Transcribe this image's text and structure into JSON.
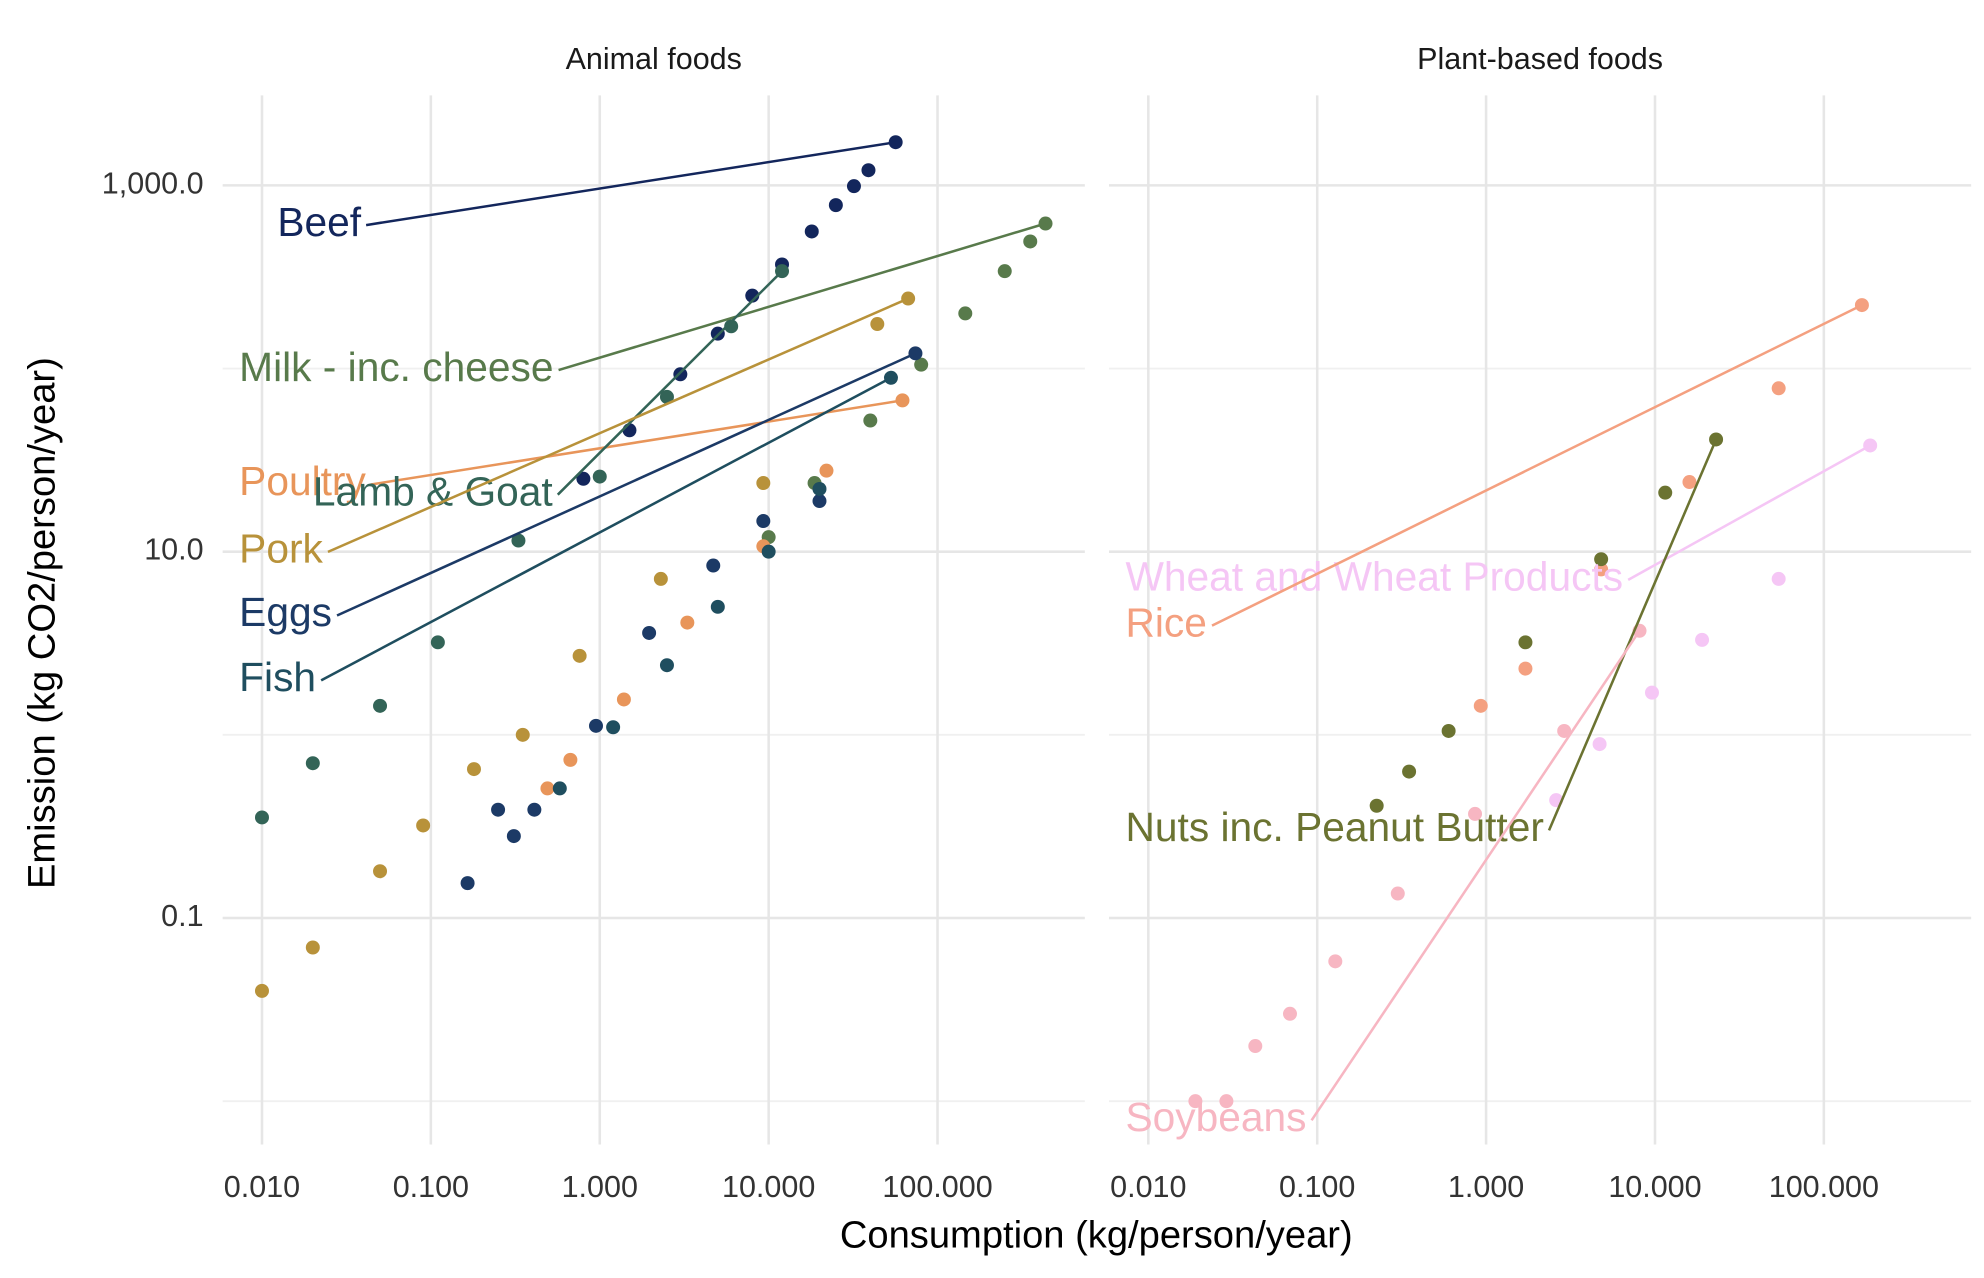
{
  "xlabel": "Consumption (kg/person/year)",
  "ylabel": "Emission (kg CO2/person/year)",
  "chart_data": [
    {
      "type": "scatter",
      "title": "Animal foods",
      "log_x": true,
      "log_y": true,
      "grid": true,
      "xlim": [
        0.00585,
        745
      ],
      "ylim": [
        0.0058,
        3100
      ],
      "xticks": [
        {
          "value": 0.01,
          "label": "0.010"
        },
        {
          "value": 0.1,
          "label": "0.100"
        },
        {
          "value": 1,
          "label": "1.000"
        },
        {
          "value": 10,
          "label": "10.000"
        },
        {
          "value": 100,
          "label": "100.000"
        }
      ],
      "yticks": [
        {
          "value": 1000,
          "label": "1,000.0"
        },
        {
          "value": 10,
          "label": "10.0"
        },
        {
          "value": 0.1,
          "label": "0.1"
        }
      ],
      "yminor": [
        100,
        1,
        0.01
      ],
      "series": [
        {
          "name": "Beef",
          "color": "#13265c",
          "x": [
            0.8,
            1.5,
            3,
            5,
            8,
            12,
            18,
            25,
            32,
            39,
            56.5
          ],
          "values": [
            25,
            46,
            93,
            155,
            250,
            370,
            560,
            780,
            990,
            1210,
            1720
          ]
        },
        {
          "name": "Milk - inc. cheese",
          "color": "#587a4b",
          "x": [
            10,
            18.7,
            40,
            80,
            146,
            250,
            354,
            436
          ],
          "values": [
            12,
            23.7,
            52,
            105,
            200,
            340,
            494,
            619
          ]
        },
        {
          "name": "Poultry",
          "color": "#e8955a",
          "x": [
            0.49,
            0.67,
            1.39,
            3.3,
            9.3,
            22,
            62
          ],
          "values": [
            0.51,
            0.73,
            1.56,
            4.1,
            10.7,
            27.7,
            67
          ]
        },
        {
          "name": "Lamb & Goat",
          "color": "#336457",
          "x": [
            0.01,
            0.02,
            0.05,
            0.11,
            0.33,
            1,
            2.5,
            6,
            12
          ],
          "values": [
            0.354,
            0.7,
            1.44,
            3.2,
            11.5,
            25.7,
            70,
            170,
            340
          ]
        },
        {
          "name": "Pork",
          "color": "#b8923a",
          "x": [
            0.01,
            0.02,
            0.05,
            0.09,
            0.18,
            0.35,
            0.76,
            2.3,
            9.3,
            44,
            67
          ],
          "values": [
            0.04,
            0.069,
            0.18,
            0.32,
            0.65,
            1,
            2.7,
            7.1,
            23.7,
            175,
            241
          ]
        },
        {
          "name": "Eggs",
          "color": "#1c3a66",
          "x": [
            0.165,
            0.25,
            0.31,
            0.41,
            0.95,
            1.96,
            4.7,
            9.3,
            20,
            74
          ],
          "values": [
            0.155,
            0.39,
            0.28,
            0.39,
            1.12,
            3.6,
            8.4,
            14.7,
            18.9,
            121
          ]
        },
        {
          "name": "Fish",
          "color": "#1f4e5f",
          "x": [
            0.58,
            1.2,
            2.5,
            5,
            10,
            20,
            53
          ],
          "values": [
            0.51,
            1.1,
            2.4,
            5,
            10,
            22,
            89
          ]
        }
      ]
    },
    {
      "type": "scatter",
      "title": "Plant-based foods",
      "log_x": true,
      "log_y": true,
      "grid": true,
      "xlim": [
        0.00585,
        745
      ],
      "ylim": [
        0.0058,
        3100
      ],
      "xticks": [
        {
          "value": 0.01,
          "label": "0.010"
        },
        {
          "value": 0.1,
          "label": "0.100"
        },
        {
          "value": 1,
          "label": "1.000"
        },
        {
          "value": 10,
          "label": "10.000"
        },
        {
          "value": 100,
          "label": "100.000"
        }
      ],
      "yticks": [
        1000,
        10,
        0.1
      ],
      "yminor": [
        100,
        1,
        0.01
      ],
      "series": [
        {
          "name": "Wheat and Wheat Products",
          "color": "#f5c6f5",
          "x": [
            2.6,
            4.7,
            9.6,
            19,
            54,
            188
          ],
          "values": [
            0.44,
            0.89,
            1.7,
            3.3,
            7.1,
            38
          ]
        },
        {
          "name": "Rice",
          "color": "#f4a080",
          "x": [
            0.93,
            1.71,
            4.8,
            16,
            54,
            168
          ],
          "values": [
            1.44,
            2.3,
            8,
            24,
            78,
            222
          ]
        },
        {
          "name": "Nuts inc. Peanut Butter",
          "color": "#6b7331",
          "x": [
            0.225,
            0.35,
            0.6,
            1.71,
            4.8,
            11.5,
            23
          ],
          "values": [
            0.41,
            0.63,
            1.05,
            3.2,
            9.1,
            21,
            41
          ]
        },
        {
          "name": "Soybeans",
          "color": "#f7b6c2",
          "x": [
            0.019,
            0.029,
            0.043,
            0.069,
            0.128,
            0.3,
            0.86,
            2.9,
            8.1
          ],
          "values": [
            0.01,
            0.01,
            0.02,
            0.03,
            0.058,
            0.136,
            0.37,
            1.05,
            3.7
          ]
        }
      ]
    }
  ]
}
